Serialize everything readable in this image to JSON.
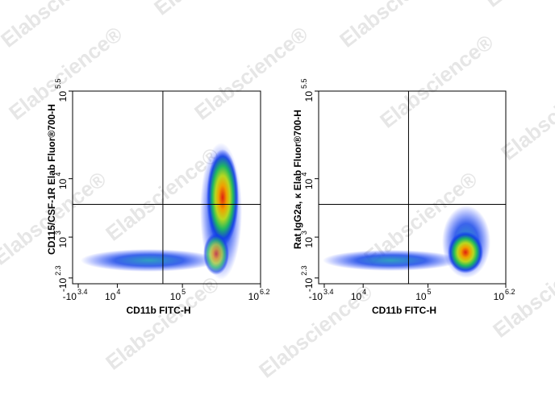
{
  "chart_data": [
    {
      "type": "density-scatter",
      "watermark": "Elabscience®",
      "x_label": "CD11b FITC-H",
      "y_label": "CD115/CSF-1R Elab Fluor®700-H",
      "scale": "biexponential",
      "xlim": [
        -3.4,
        6.2
      ],
      "xticks": [
        {
          "value": -3.4,
          "label": "-10",
          "sup": "3.4"
        },
        {
          "value": 4,
          "label": "10",
          "sup": "4"
        },
        {
          "value": 5,
          "label": "10",
          "sup": "5"
        },
        {
          "value": 6.2,
          "label": "10",
          "sup": "6.2"
        }
      ],
      "ylim": [
        -2.3,
        5.5
      ],
      "yticks": [
        {
          "value": -2.3,
          "label": "-10",
          "sup": "2.3"
        },
        {
          "value": 3,
          "label": "10",
          "sup": "3"
        },
        {
          "value": 4,
          "label": "10",
          "sup": "4"
        },
        {
          "value": 5.5,
          "label": "10",
          "sup": "5.5"
        }
      ],
      "gate": {
        "x": 4.7,
        "y": 3.56
      }
    },
    {
      "type": "density-scatter",
      "watermark": "Elabscience®",
      "x_label": "CD11b FITC-H",
      "y_label": "Rat IgG2a, κ Elab Fluor®700-H",
      "scale": "biexponential",
      "xlim": [
        -3.4,
        6.2
      ],
      "xticks": [
        {
          "value": -3.4,
          "label": "-10",
          "sup": "3.4"
        },
        {
          "value": 4,
          "label": "10",
          "sup": "4"
        },
        {
          "value": 5,
          "label": "10",
          "sup": "5"
        },
        {
          "value": 6.2,
          "label": "10",
          "sup": "6.2"
        }
      ],
      "ylim": [
        -2.3,
        5.5
      ],
      "yticks": [
        {
          "value": -2.3,
          "label": "-10",
          "sup": "2.3"
        },
        {
          "value": 3,
          "label": "10",
          "sup": "3"
        },
        {
          "value": 4,
          "label": "10",
          "sup": "4"
        },
        {
          "value": 5.5,
          "label": "10",
          "sup": "5.5"
        }
      ],
      "gate": {
        "x": 4.7,
        "y": 3.56
      }
    }
  ]
}
